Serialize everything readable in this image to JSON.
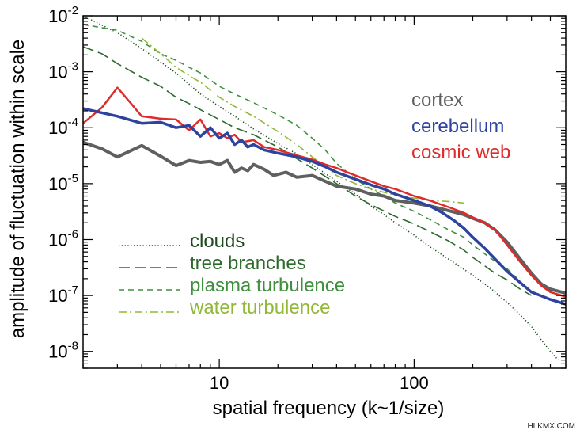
{
  "chart_data": {
    "type": "line",
    "xlabel": "spatial frequency (k~1/size)",
    "ylabel": "amplitude of fluctuation within scale",
    "xscale": "log",
    "yscale": "log",
    "xlim": [
      2,
      600
    ],
    "ylim": [
      5e-09,
      0.01
    ],
    "x_ticks": [
      {
        "value": 10,
        "label": "10"
      },
      {
        "value": 100,
        "label": "100"
      }
    ],
    "y_ticks": [
      {
        "value": 0.01,
        "mantissa": "10",
        "exp": "-2"
      },
      {
        "value": 0.001,
        "mantissa": "10",
        "exp": "-3"
      },
      {
        "value": 0.0001,
        "mantissa": "10",
        "exp": "-4"
      },
      {
        "value": 1e-05,
        "mantissa": "10",
        "exp": "-5"
      },
      {
        "value": 1e-06,
        "mantissa": "10",
        "exp": "-6"
      },
      {
        "value": 1e-07,
        "mantissa": "10",
        "exp": "-7"
      },
      {
        "value": 1e-08,
        "mantissa": "10",
        "exp": "-8"
      }
    ],
    "legend_top": [
      {
        "name": "cortex",
        "color": "#5f5f5f"
      },
      {
        "name": "cerebellum",
        "color": "#2e43a0"
      },
      {
        "name": "cosmic web",
        "color": "#df2b2b"
      }
    ],
    "legend_bottom": [
      {
        "name": "clouds",
        "color": "#1f4a1f",
        "dash": "dotted"
      },
      {
        "name": "tree branches",
        "color": "#2d6a2d",
        "dash": "long-dash"
      },
      {
        "name": "plasma turbulence",
        "color": "#3f8f3f",
        "dash": "dash"
      },
      {
        "name": "water turbulence",
        "color": "#92b838",
        "dash": "dash-dot"
      }
    ],
    "series": [
      {
        "name": "cortex",
        "color": "#5f5f5f",
        "width": 4,
        "dash": "solid",
        "points": [
          [
            2,
            5.5e-05
          ],
          [
            2.5,
            4.2e-05
          ],
          [
            3,
            3e-05
          ],
          [
            4,
            4.8e-05
          ],
          [
            5,
            3.1e-05
          ],
          [
            6,
            2.1e-05
          ],
          [
            7,
            2.6e-05
          ],
          [
            8,
            2.4e-05
          ],
          [
            9,
            2.5e-05
          ],
          [
            10,
            2.2e-05
          ],
          [
            11,
            2.6e-05
          ],
          [
            12,
            1.6e-05
          ],
          [
            13,
            1.9e-05
          ],
          [
            14,
            1.7e-05
          ],
          [
            15,
            2.2e-05
          ],
          [
            17,
            1.8e-05
          ],
          [
            19,
            1.4e-05
          ],
          [
            22,
            1.6e-05
          ],
          [
            25,
            1.3e-05
          ],
          [
            30,
            1.4e-05
          ],
          [
            35,
            1.1e-05
          ],
          [
            40,
            9e-06
          ],
          [
            50,
            8e-06
          ],
          [
            60,
            6.5e-06
          ],
          [
            70,
            6e-06
          ],
          [
            80,
            5e-06
          ],
          [
            100,
            4.5e-06
          ],
          [
            120,
            4e-06
          ],
          [
            150,
            3.3e-06
          ],
          [
            180,
            2.8e-06
          ],
          [
            200,
            2.4e-06
          ],
          [
            230,
            2e-06
          ],
          [
            260,
            1.5e-06
          ],
          [
            300,
            9e-07
          ],
          [
            350,
            4.5e-07
          ],
          [
            400,
            2.5e-07
          ],
          [
            450,
            1.6e-07
          ],
          [
            500,
            1.3e-07
          ],
          [
            600,
            1.1e-07
          ]
        ]
      },
      {
        "name": "cerebellum",
        "color": "#2e43a0",
        "width": 3.5,
        "dash": "solid",
        "points": [
          [
            2,
            0.00022
          ],
          [
            3,
            0.00016
          ],
          [
            4,
            0.00012
          ],
          [
            5,
            0.000125
          ],
          [
            6,
            0.0001
          ],
          [
            7,
            0.00011
          ],
          [
            8,
            7e-05
          ],
          [
            9,
            0.0001
          ],
          [
            10,
            6.5e-05
          ],
          [
            11,
            8e-05
          ],
          [
            12,
            5e-05
          ],
          [
            13,
            6e-05
          ],
          [
            14,
            4.5e-05
          ],
          [
            15,
            5e-05
          ],
          [
            17,
            4e-05
          ],
          [
            20,
            3.5e-05
          ],
          [
            25,
            3e-05
          ],
          [
            30,
            2.5e-05
          ],
          [
            35,
            2e-05
          ],
          [
            40,
            1.6e-05
          ],
          [
            50,
            1.2e-05
          ],
          [
            60,
            9.5e-06
          ],
          [
            70,
            8e-06
          ],
          [
            80,
            6.5e-06
          ],
          [
            100,
            5e-06
          ],
          [
            120,
            4e-06
          ],
          [
            140,
            3e-06
          ],
          [
            160,
            2.2e-06
          ],
          [
            180,
            1.6e-06
          ],
          [
            200,
            1.1e-06
          ],
          [
            230,
            7e-07
          ],
          [
            260,
            4.5e-07
          ],
          [
            300,
            2.7e-07
          ],
          [
            350,
            1.7e-07
          ],
          [
            400,
            1.15e-07
          ],
          [
            500,
            8.5e-08
          ],
          [
            600,
            7e-08
          ]
        ]
      },
      {
        "name": "cosmic web",
        "color": "#df2b2b",
        "width": 2.5,
        "dash": "solid",
        "points": [
          [
            2,
            0.00012
          ],
          [
            2.5,
            0.00023
          ],
          [
            3,
            0.00052
          ],
          [
            3.5,
            0.00028
          ],
          [
            4,
            0.00016
          ],
          [
            5,
            0.000145
          ],
          [
            6,
            0.00014
          ],
          [
            7,
            9e-05
          ],
          [
            8,
            0.00014
          ],
          [
            9,
            7e-05
          ],
          [
            10,
            8e-05
          ],
          [
            11,
            6.5e-05
          ],
          [
            12,
            7.5e-05
          ],
          [
            13,
            5.5e-05
          ],
          [
            15,
            6e-05
          ],
          [
            17,
            4.5e-05
          ],
          [
            20,
            4e-05
          ],
          [
            25,
            3.2e-05
          ],
          [
            30,
            2.7e-05
          ],
          [
            35,
            2.2e-05
          ],
          [
            40,
            1.9e-05
          ],
          [
            50,
            1.4e-05
          ],
          [
            60,
            1.1e-05
          ],
          [
            70,
            9e-06
          ],
          [
            80,
            8e-06
          ],
          [
            100,
            6e-06
          ],
          [
            120,
            5e-06
          ],
          [
            150,
            3.8e-06
          ],
          [
            180,
            3e-06
          ],
          [
            200,
            2.5e-06
          ],
          [
            230,
            2e-06
          ],
          [
            260,
            1.5e-06
          ],
          [
            300,
            8e-07
          ],
          [
            350,
            4e-07
          ],
          [
            400,
            2.3e-07
          ],
          [
            450,
            1.5e-07
          ],
          [
            500,
            1.15e-07
          ],
          [
            600,
            9.5e-08
          ]
        ]
      },
      {
        "name": "clouds",
        "color": "#1f4a1f",
        "width": 1.6,
        "dash": "dotted",
        "points": [
          [
            2,
            0.01
          ],
          [
            3,
            0.005
          ],
          [
            4,
            0.0026
          ],
          [
            5,
            0.0015
          ],
          [
            6,
            0.00095
          ],
          [
            7,
            0.0006
          ],
          [
            8,
            0.0004
          ],
          [
            10,
            0.00024
          ],
          [
            12,
            0.00016
          ],
          [
            15,
            9.5e-05
          ],
          [
            20,
            5.2e-05
          ],
          [
            25,
            3.4e-05
          ],
          [
            30,
            2.2e-05
          ],
          [
            40,
            1.1e-05
          ],
          [
            50,
            6.5e-06
          ],
          [
            60,
            4e-06
          ],
          [
            70,
            2.8e-06
          ],
          [
            80,
            2e-06
          ],
          [
            100,
            1.2e-06
          ],
          [
            120,
            7.5e-07
          ],
          [
            150,
            4.5e-07
          ],
          [
            200,
            2.3e-07
          ],
          [
            250,
            1.3e-07
          ],
          [
            300,
            7.5e-08
          ],
          [
            350,
            4.5e-08
          ],
          [
            400,
            2.8e-08
          ],
          [
            450,
            1.6e-08
          ],
          [
            500,
            1e-08
          ],
          [
            550,
            7e-09
          ]
        ]
      },
      {
        "name": "tree branches",
        "color": "#2d6a2d",
        "width": 1.6,
        "dash": "long-dash",
        "points": [
          [
            2,
            0.0028
          ],
          [
            2.5,
            0.0021
          ],
          [
            3,
            0.0014
          ],
          [
            4,
            0.0008
          ],
          [
            5,
            0.00055
          ],
          [
            6,
            0.00035
          ],
          [
            7,
            0.00027
          ],
          [
            8,
            0.00021
          ],
          [
            10,
            0.00014
          ],
          [
            12,
            0.0001
          ],
          [
            15,
            7.5e-05
          ],
          [
            20,
            4.5e-05
          ],
          [
            25,
            2.8e-05
          ],
          [
            30,
            1.9e-05
          ],
          [
            40,
            1e-05
          ],
          [
            50,
            6e-06
          ],
          [
            60,
            4.2e-06
          ],
          [
            80,
            2.6e-06
          ],
          [
            100,
            1.9e-06
          ],
          [
            120,
            1.4e-06
          ],
          [
            150,
            9.5e-07
          ],
          [
            180,
            6.5e-07
          ],
          [
            200,
            4.8e-07
          ],
          [
            230,
            3.4e-07
          ],
          [
            260,
            2.5e-07
          ],
          [
            300,
            1.9e-07
          ],
          [
            350,
            1.3e-07
          ],
          [
            400,
            1e-07
          ]
        ]
      },
      {
        "name": "plasma turbulence",
        "color": "#3f8f3f",
        "width": 1.6,
        "dash": "dash",
        "points": [
          [
            2,
            0.007
          ],
          [
            3,
            0.0055
          ],
          [
            4,
            0.0035
          ],
          [
            5,
            0.0021
          ],
          [
            6,
            0.0016
          ],
          [
            7,
            0.0012
          ],
          [
            8,
            0.00095
          ],
          [
            10,
            0.00055
          ],
          [
            12,
            0.0004
          ],
          [
            15,
            0.00028
          ],
          [
            20,
            0.00017
          ],
          [
            25,
            0.00011
          ],
          [
            30,
            6.5e-05
          ],
          [
            35,
            4e-05
          ],
          [
            40,
            2.3e-05
          ],
          [
            50,
            1.2e-05
          ],
          [
            60,
            8e-06
          ],
          [
            70,
            6e-06
          ],
          [
            80,
            4.5e-06
          ],
          [
            100,
            3.2e-06
          ],
          [
            120,
            2.3e-06
          ],
          [
            150,
            1.5e-06
          ],
          [
            180,
            1.1e-06
          ],
          [
            200,
            8e-07
          ],
          [
            250,
            4.5e-07
          ],
          [
            300,
            3e-07
          ],
          [
            350,
            1.8e-07
          ],
          [
            400,
            1.1e-07
          ]
        ]
      },
      {
        "name": "water turbulence",
        "color": "#92b838",
        "width": 1.6,
        "dash": "dash-dot",
        "points": [
          [
            4,
            0.004
          ],
          [
            5,
            0.0021
          ],
          [
            6,
            0.0012
          ],
          [
            7,
            0.00085
          ],
          [
            8,
            0.00065
          ],
          [
            10,
            0.00035
          ],
          [
            12,
            0.00024
          ],
          [
            15,
            0.00016
          ],
          [
            20,
            8.5e-05
          ],
          [
            25,
            5e-05
          ],
          [
            30,
            3e-05
          ],
          [
            35,
            2e-05
          ],
          [
            40,
            1.4e-05
          ],
          [
            50,
            1e-05
          ],
          [
            60,
            8e-06
          ],
          [
            70,
            7e-06
          ],
          [
            80,
            6.2e-06
          ],
          [
            100,
            5.5e-06
          ],
          [
            120,
            5e-06
          ],
          [
            150,
            4.8e-06
          ],
          [
            180,
            4.5e-06
          ]
        ]
      }
    ]
  },
  "watermark": "HLKMX.COM"
}
